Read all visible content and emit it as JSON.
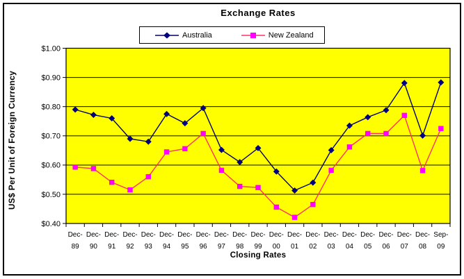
{
  "window": {
    "background": "#FFFFFF",
    "border_color": "#000000"
  },
  "chart_data": {
    "type": "line",
    "title": "Exchange Rates",
    "xlabel": "Closing Rates",
    "ylabel": "US$ Per Unit of Foreign Currency",
    "categories": [
      "Dec-89",
      "Dec-90",
      "Dec-91",
      "Dec-92",
      "Dec-93",
      "Dec-94",
      "Dec-95",
      "Dec-96",
      "Dec-97",
      "Dec-98",
      "Dec-99",
      "Dec-00",
      "Dec-01",
      "Dec-02",
      "Dec-03",
      "Dec-04",
      "Dec-05",
      "Dec-06",
      "Dec-07",
      "Dec-08",
      "Sep-09"
    ],
    "series": [
      {
        "name": "Australia",
        "marker": "diamond",
        "line_color": "#000066",
        "marker_color": "#000080",
        "values": [
          0.79,
          0.772,
          0.76,
          0.69,
          0.68,
          0.775,
          0.743,
          0.795,
          0.652,
          0.61,
          0.658,
          0.578,
          0.513,
          0.54,
          0.651,
          0.735,
          0.764,
          0.788,
          0.881,
          0.701,
          0.883
        ]
      },
      {
        "name": "New Zealand",
        "marker": "square",
        "line_color": "#FF3366",
        "marker_color": "#FF00FF",
        "values": [
          0.593,
          0.588,
          0.541,
          0.515,
          0.56,
          0.645,
          0.656,
          0.708,
          0.582,
          0.527,
          0.523,
          0.456,
          0.421,
          0.465,
          0.582,
          0.662,
          0.708,
          0.708,
          0.77,
          0.581,
          0.725
        ]
      }
    ],
    "ylim": [
      0.4,
      1.0
    ],
    "y_tick_values": [
      0.4,
      0.5,
      0.6,
      0.7,
      0.8,
      0.9,
      1.0
    ],
    "y_tick_labels": [
      "$0.40",
      "$0.50",
      "$0.60",
      "$0.70",
      "$0.80",
      "$0.90",
      "$1.00"
    ],
    "plot_bg": "#FFFF00",
    "grid_color": "#000000",
    "grid": true,
    "legend_position": "top"
  }
}
